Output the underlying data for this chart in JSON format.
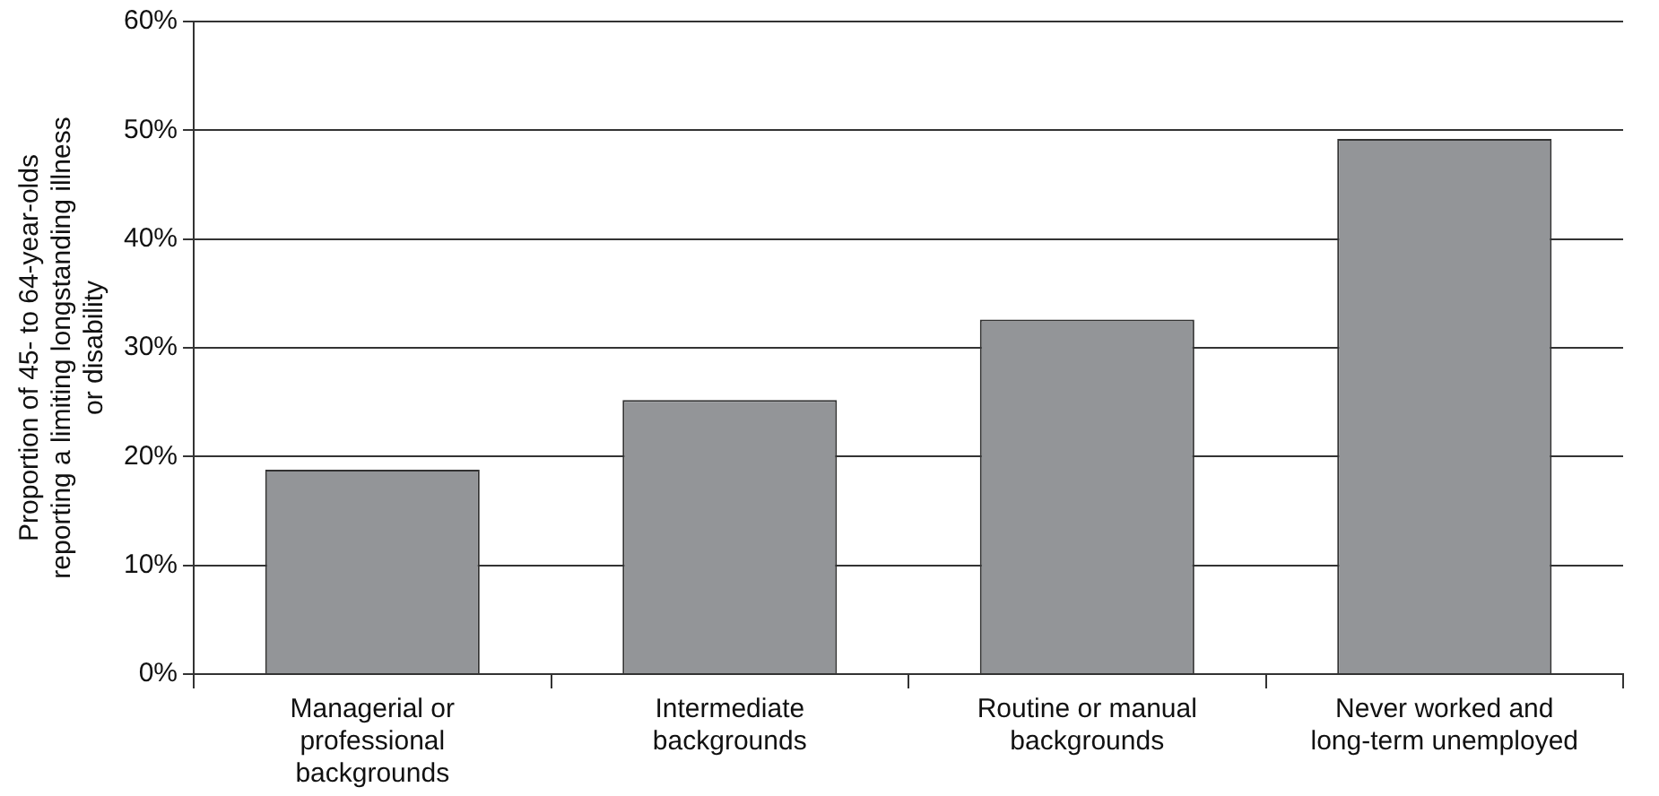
{
  "chart_data": {
    "type": "bar",
    "ylabel": "Proportion of 45- to 64-year-olds reporting a limiting longstanding illness or disability",
    "categories": [
      "Managerial or professional backgrounds",
      "Intermediate backgrounds",
      "Routine or manual backgrounds",
      "Never worked and long-term unemployed"
    ],
    "values": [
      18.8,
      25.2,
      32.6,
      49.2
    ],
    "color": "#939598",
    "ylim": [
      0,
      60
    ],
    "yticks": [
      {
        "value": 0,
        "label": "0%"
      },
      {
        "value": 10,
        "label": "10%"
      },
      {
        "value": 20,
        "label": "20%"
      },
      {
        "value": 30,
        "label": "30%"
      },
      {
        "value": 40,
        "label": "40%"
      },
      {
        "value": 50,
        "label": "50%"
      },
      {
        "value": 60,
        "label": "60%"
      }
    ],
    "grid": "y",
    "legend": false
  }
}
